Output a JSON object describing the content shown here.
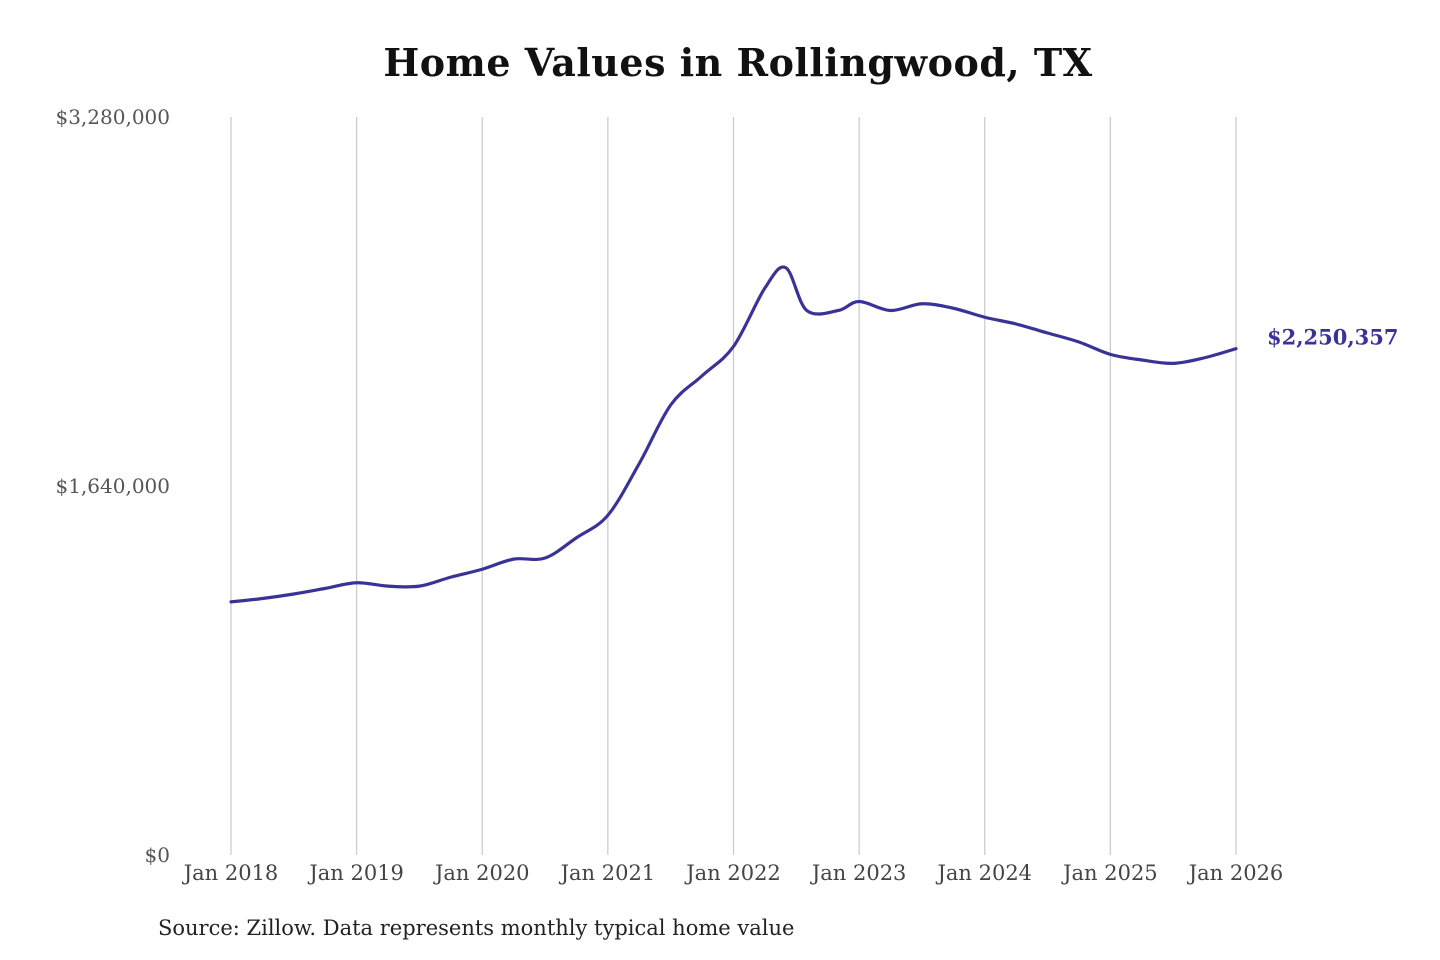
{
  "chart_data": {
    "type": "line",
    "title": "Home Values in Rollingwood, TX",
    "xlabel": "",
    "ylabel": "",
    "source_note": "Source: Zillow. Data represents monthly typical home value",
    "ylim": [
      0,
      3280000
    ],
    "y_ticks": [
      {
        "value": 0,
        "label": "$0"
      },
      {
        "value": 1640000,
        "label": "$1,640,000"
      },
      {
        "value": 3280000,
        "label": "$3,280,000"
      }
    ],
    "x_range": [
      "2018-01",
      "2026-01"
    ],
    "x_ticks": [
      {
        "date": "2018-01",
        "label": "Jan 2018"
      },
      {
        "date": "2019-01",
        "label": "Jan 2019"
      },
      {
        "date": "2020-01",
        "label": "Jan 2020"
      },
      {
        "date": "2021-01",
        "label": "Jan 2021"
      },
      {
        "date": "2022-01",
        "label": "Jan 2022"
      },
      {
        "date": "2023-01",
        "label": "Jan 2023"
      },
      {
        "date": "2024-01",
        "label": "Jan 2024"
      },
      {
        "date": "2025-01",
        "label": "Jan 2025"
      },
      {
        "date": "2026-01",
        "label": "Jan 2026"
      }
    ],
    "grid": {
      "vertical": true,
      "horizontal": false
    },
    "line_color": "#3a3397",
    "end_label": "$2,250,357",
    "series": [
      {
        "values": [
          {
            "x": "2018-01",
            "y": 1125000
          },
          {
            "x": "2018-04",
            "y": 1140000
          },
          {
            "x": "2018-07",
            "y": 1160000
          },
          {
            "x": "2018-10",
            "y": 1185000
          },
          {
            "x": "2019-01",
            "y": 1210000
          },
          {
            "x": "2019-04",
            "y": 1195000
          },
          {
            "x": "2019-07",
            "y": 1195000
          },
          {
            "x": "2019-10",
            "y": 1235000
          },
          {
            "x": "2020-01",
            "y": 1270000
          },
          {
            "x": "2020-04",
            "y": 1315000
          },
          {
            "x": "2020-07",
            "y": 1320000
          },
          {
            "x": "2020-10",
            "y": 1410000
          },
          {
            "x": "2021-01",
            "y": 1510000
          },
          {
            "x": "2021-04",
            "y": 1740000
          },
          {
            "x": "2021-07",
            "y": 2000000
          },
          {
            "x": "2021-10",
            "y": 2130000
          },
          {
            "x": "2022-01",
            "y": 2260000
          },
          {
            "x": "2022-04",
            "y": 2520000
          },
          {
            "x": "2022-06",
            "y": 2610000
          },
          {
            "x": "2022-08",
            "y": 2420000
          },
          {
            "x": "2022-11",
            "y": 2420000
          },
          {
            "x": "2023-01",
            "y": 2460000
          },
          {
            "x": "2023-04",
            "y": 2420000
          },
          {
            "x": "2023-07",
            "y": 2450000
          },
          {
            "x": "2023-10",
            "y": 2430000
          },
          {
            "x": "2024-01",
            "y": 2390000
          },
          {
            "x": "2024-04",
            "y": 2360000
          },
          {
            "x": "2024-07",
            "y": 2320000
          },
          {
            "x": "2024-10",
            "y": 2280000
          },
          {
            "x": "2025-01",
            "y": 2225000
          },
          {
            "x": "2025-04",
            "y": 2200000
          },
          {
            "x": "2025-07",
            "y": 2185000
          },
          {
            "x": "2025-10",
            "y": 2210000
          },
          {
            "x": "2026-01",
            "y": 2250357
          }
        ]
      }
    ]
  }
}
